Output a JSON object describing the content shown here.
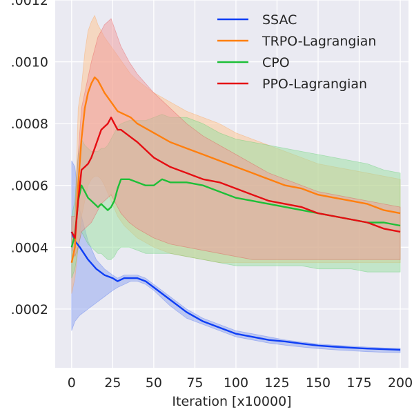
{
  "chart_data": {
    "type": "line",
    "title": "",
    "xlabel": "Iteration [x10000]",
    "ylabel": "",
    "xlim": [
      -10,
      205
    ],
    "ylim": [
      1e-05,
      0.0012
    ],
    "xticks": [
      0,
      25,
      50,
      75,
      100,
      125,
      150,
      175,
      200
    ],
    "xtick_labels": [
      "0",
      "25",
      "50",
      "75",
      "100",
      "125",
      "150",
      "175",
      "200"
    ],
    "yticks": [
      0.0002,
      0.0004,
      0.0006,
      0.0008,
      0.001,
      0.0012
    ],
    "ytick_labels": [
      ".0002",
      ".0004",
      ".0006",
      ".0008",
      ".0010",
      ".0012"
    ],
    "grid": true,
    "legend_position": "top-right",
    "series": [
      {
        "name": "SSAC",
        "color": "#0e3ef5",
        "fill": "#8ea3ef",
        "x": [
          0,
          2,
          5,
          10,
          15,
          20,
          25,
          28,
          32,
          36,
          40,
          45,
          50,
          60,
          70,
          80,
          90,
          100,
          110,
          120,
          130,
          140,
          150,
          160,
          170,
          180,
          190,
          200
        ],
        "y": [
          0.00045,
          0.00042,
          0.0004,
          0.00036,
          0.00033,
          0.00031,
          0.0003,
          0.00029,
          0.0003,
          0.0003,
          0.0003,
          0.00029,
          0.00027,
          0.00023,
          0.00019,
          0.00016,
          0.00014,
          0.00012,
          0.00011,
          0.0001,
          9.5e-05,
          8.8e-05,
          8.2e-05,
          7.8e-05,
          7.5e-05,
          7.2e-05,
          7e-05,
          6.8e-05
        ],
        "upper": [
          0.00068,
          0.00066,
          0.00052,
          0.00042,
          0.00036,
          0.00033,
          0.00031,
          0.0003,
          0.00031,
          0.00031,
          0.00031,
          0.0003,
          0.00028,
          0.00024,
          0.0002,
          0.00017,
          0.00015,
          0.00013,
          0.00012,
          0.00011,
          0.0001,
          9.3e-05,
          8.7e-05,
          8.3e-05,
          8e-05,
          7.7e-05,
          7.4e-05,
          7.3e-05
        ],
        "lower": [
          0.00013,
          0.00016,
          0.00018,
          0.0002,
          0.00022,
          0.00024,
          0.00026,
          0.00027,
          0.00028,
          0.00029,
          0.00029,
          0.00028,
          0.00026,
          0.00021,
          0.00017,
          0.00015,
          0.00013,
          0.00011,
          0.0001,
          9e-05,
          8.3e-05,
          7.7e-05,
          7.2e-05,
          6.8e-05,
          6.5e-05,
          6.2e-05,
          6e-05,
          5.9e-05
        ]
      },
      {
        "name": "TRPO-Lagrangian",
        "color": "#ff7f0e",
        "fill": "#ffc38e",
        "x": [
          0,
          2,
          4,
          6,
          8,
          10,
          12,
          14,
          16,
          18,
          20,
          24,
          28,
          32,
          36,
          40,
          50,
          60,
          70,
          80,
          90,
          100,
          110,
          120,
          130,
          140,
          150,
          160,
          170,
          180,
          190,
          200
        ],
        "y": [
          0.00035,
          0.0004,
          0.0006,
          0.00075,
          0.00085,
          0.0009,
          0.00093,
          0.00095,
          0.00094,
          0.00092,
          0.0009,
          0.00087,
          0.00084,
          0.00083,
          0.00082,
          0.0008,
          0.00077,
          0.00074,
          0.00072,
          0.0007,
          0.00068,
          0.00066,
          0.00064,
          0.00062,
          0.0006,
          0.00059,
          0.00057,
          0.00056,
          0.00055,
          0.00054,
          0.00052,
          0.00051
        ],
        "upper": [
          0.00045,
          0.0005,
          0.00085,
          0.00092,
          0.00103,
          0.0011,
          0.00113,
          0.00115,
          0.00112,
          0.0011,
          0.00108,
          0.00105,
          0.00102,
          0.00099,
          0.00096,
          0.00094,
          0.0009,
          0.00087,
          0.00084,
          0.00082,
          0.0008,
          0.00077,
          0.00075,
          0.00073,
          0.00071,
          0.00069,
          0.00067,
          0.00066,
          0.00065,
          0.00064,
          0.00063,
          0.00062
        ],
        "lower": [
          0.00025,
          0.0003,
          0.0004,
          0.0005,
          0.00055,
          0.0006,
          0.00062,
          0.00063,
          0.00063,
          0.00062,
          0.0006,
          0.00055,
          0.0005,
          0.00047,
          0.00045,
          0.00043,
          0.0004,
          0.00038,
          0.00037,
          0.00036,
          0.00035,
          0.00035,
          0.00035,
          0.00035,
          0.00035,
          0.00035,
          0.00035,
          0.00035,
          0.00035,
          0.00035,
          0.00035,
          0.00035
        ]
      },
      {
        "name": "CPO",
        "color": "#1dbf37",
        "fill": "#99dfa0",
        "x": [
          0,
          2,
          4,
          6,
          8,
          10,
          12,
          14,
          16,
          18,
          20,
          22,
          24,
          26,
          28,
          30,
          35,
          40,
          45,
          50,
          55,
          60,
          70,
          80,
          90,
          100,
          110,
          120,
          130,
          140,
          150,
          160,
          170,
          180,
          190,
          200
        ],
        "y": [
          0.0004,
          0.00044,
          0.00055,
          0.0006,
          0.00058,
          0.00056,
          0.00055,
          0.00054,
          0.00053,
          0.00054,
          0.00053,
          0.00052,
          0.00053,
          0.00055,
          0.00059,
          0.00062,
          0.00062,
          0.00061,
          0.0006,
          0.0006,
          0.00062,
          0.00061,
          0.00061,
          0.0006,
          0.00058,
          0.00056,
          0.00055,
          0.00054,
          0.00053,
          0.00052,
          0.00051,
          0.0005,
          0.00049,
          0.00048,
          0.00048,
          0.00047
        ],
        "upper": [
          0.0005,
          0.00055,
          0.0007,
          0.00075,
          0.00073,
          0.00072,
          0.00071,
          0.00071,
          0.00071,
          0.00072,
          0.00072,
          0.00073,
          0.00075,
          0.00077,
          0.00079,
          0.0008,
          0.00081,
          0.00081,
          0.00081,
          0.00082,
          0.00083,
          0.00082,
          0.00082,
          0.0008,
          0.00077,
          0.00075,
          0.00074,
          0.00073,
          0.00072,
          0.00071,
          0.0007,
          0.00069,
          0.00068,
          0.00067,
          0.00065,
          0.00064
        ],
        "lower": [
          0.0003,
          0.00033,
          0.0004,
          0.00045,
          0.00043,
          0.00041,
          0.0004,
          0.00039,
          0.00038,
          0.00038,
          0.00037,
          0.00036,
          0.00036,
          0.00037,
          0.00039,
          0.0004,
          0.0004,
          0.00039,
          0.00038,
          0.00038,
          0.00038,
          0.00038,
          0.00037,
          0.00036,
          0.00035,
          0.00034,
          0.00034,
          0.00034,
          0.00034,
          0.00034,
          0.00033,
          0.00033,
          0.00033,
          0.00032,
          0.00032,
          0.00032
        ]
      },
      {
        "name": "PPO-Lagrangian",
        "color": "#e50d12",
        "fill": "#f0999a",
        "x": [
          0,
          2,
          4,
          6,
          8,
          10,
          12,
          14,
          16,
          18,
          20,
          22,
          24,
          26,
          28,
          30,
          35,
          40,
          50,
          60,
          70,
          80,
          90,
          100,
          110,
          120,
          130,
          140,
          150,
          160,
          170,
          180,
          190,
          200
        ],
        "y": [
          0.00045,
          0.00043,
          0.00055,
          0.00065,
          0.00066,
          0.00067,
          0.00069,
          0.00072,
          0.00075,
          0.00078,
          0.00079,
          0.0008,
          0.00082,
          0.0008,
          0.00078,
          0.00078,
          0.00076,
          0.00074,
          0.00069,
          0.00066,
          0.00064,
          0.00062,
          0.00061,
          0.00059,
          0.00057,
          0.00055,
          0.00054,
          0.00053,
          0.00051,
          0.0005,
          0.00049,
          0.00048,
          0.00046,
          0.00045
        ],
        "upper": [
          0.0005,
          0.0005,
          0.0007,
          0.00085,
          0.0009,
          0.00095,
          0.001,
          0.00104,
          0.00108,
          0.0011,
          0.00112,
          0.00113,
          0.00114,
          0.00111,
          0.00108,
          0.00105,
          0.001,
          0.00096,
          0.0009,
          0.00085,
          0.0008,
          0.00076,
          0.00073,
          0.0007,
          0.00067,
          0.00064,
          0.00062,
          0.0006,
          0.00058,
          0.00057,
          0.00056,
          0.00055,
          0.00054,
          0.00053
        ],
        "lower": [
          0.0004,
          0.00037,
          0.0004,
          0.00045,
          0.00046,
          0.00047,
          0.00048,
          0.0005,
          0.00052,
          0.00054,
          0.00055,
          0.00056,
          0.00057,
          0.00055,
          0.00053,
          0.00051,
          0.00048,
          0.00046,
          0.00043,
          0.00041,
          0.0004,
          0.00039,
          0.00038,
          0.00037,
          0.00036,
          0.00036,
          0.00036,
          0.00036,
          0.00036,
          0.00036,
          0.00036,
          0.00036,
          0.00036,
          0.00036
        ]
      }
    ]
  }
}
